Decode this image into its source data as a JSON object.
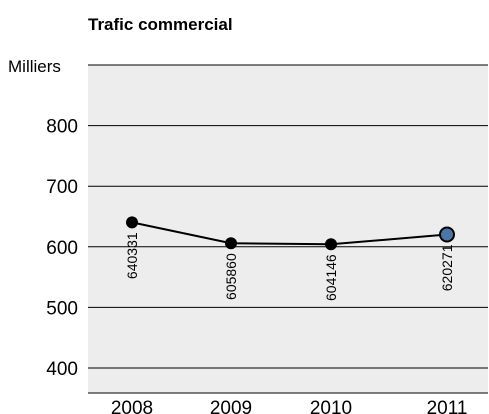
{
  "chart_data": {
    "type": "line",
    "title": "Trafic commercial",
    "ylabel": "Milliers",
    "xlabel": "",
    "categories": [
      "2008",
      "2009",
      "2010",
      "2011"
    ],
    "series": [
      {
        "values": [
          640331,
          605860,
          604146,
          620271
        ]
      }
    ],
    "data_labels": [
      "640331",
      "605860",
      "604146",
      "620271"
    ],
    "y_ticks": [
      "400",
      "500",
      "600",
      "700",
      "800"
    ],
    "ylim": [
      400,
      900
    ],
    "grid": "horizontal",
    "highlight_last_point": true
  },
  "colors": {
    "line": "#000000",
    "marker": "#000000",
    "highlight_marker": "#4a76a8",
    "grid": "#000000",
    "plot_background": "#ededed"
  }
}
